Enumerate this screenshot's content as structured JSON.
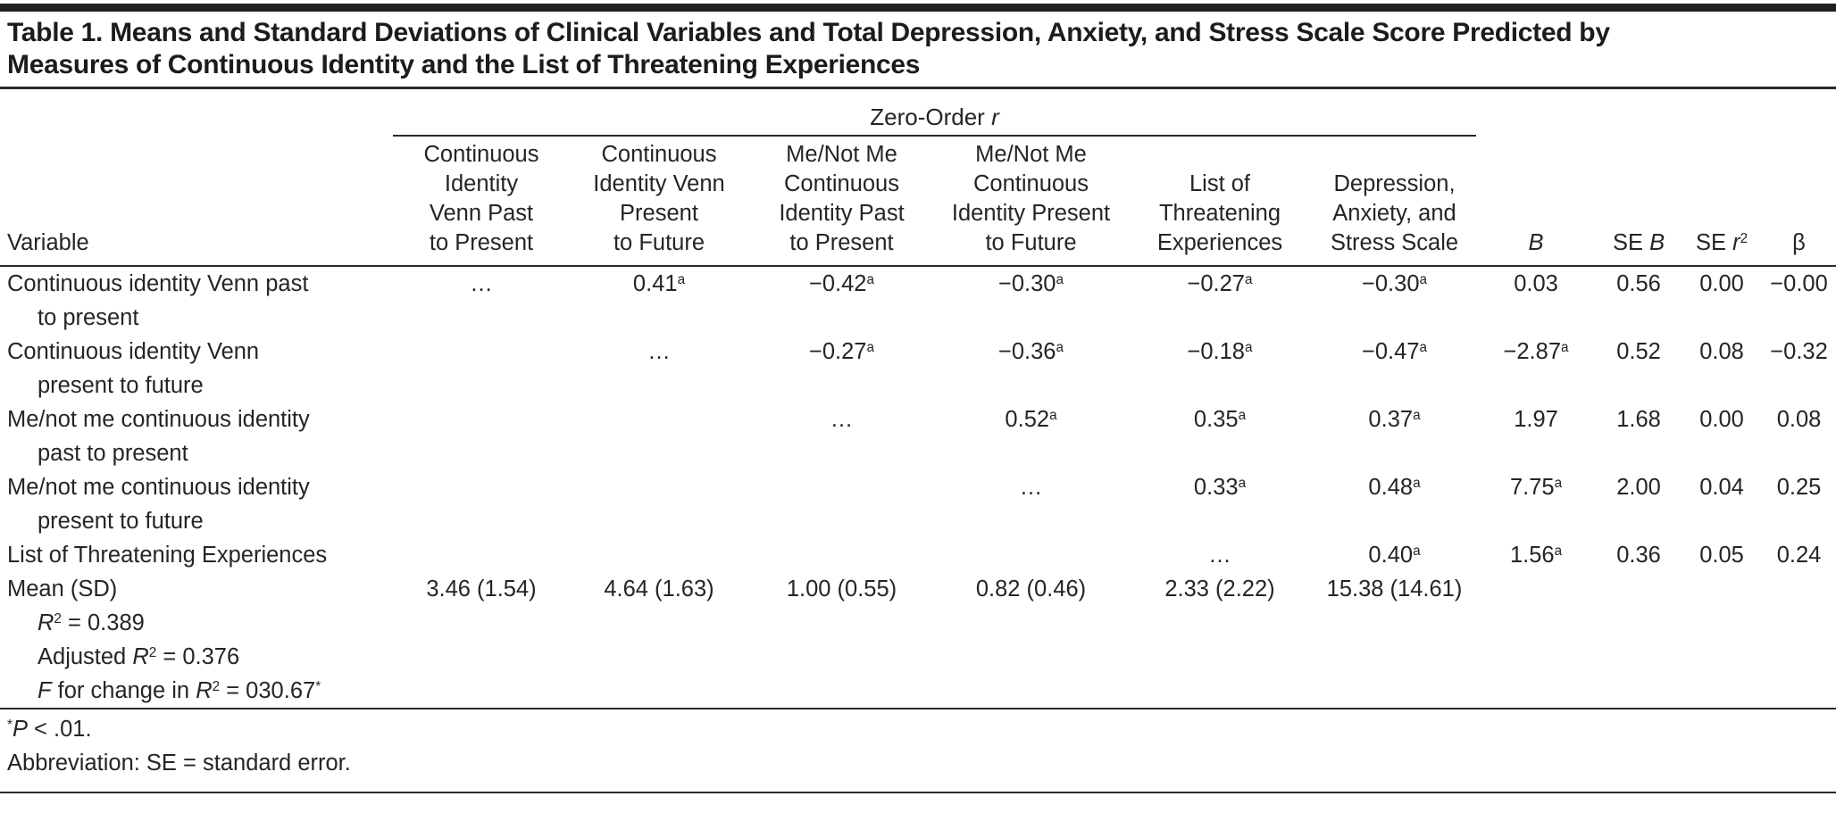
{
  "title_lines": [
    "Table 1. Means and Standard Deviations of Clinical Variables and Total Depression, Anxiety, and Stress Scale Score Predicted by",
    "Measures of Continuous Identity and the List of Threatening Experiences"
  ],
  "table": {
    "spanner_label": "Zero-Order //r//",
    "row_header_label": "Variable",
    "columns": [
      {
        "id": "continuous-identity-venn-past-to-present",
        "lines": [
          "Continuous",
          "Identity",
          "Venn Past",
          "to Present"
        ]
      },
      {
        "id": "continuous-identity-venn-present-to-future",
        "lines": [
          "Continuous",
          "Identity Venn",
          "Present",
          "to Future"
        ]
      },
      {
        "id": "me-not-me-continuous-identity-past-to-present",
        "lines": [
          "Me/Not Me",
          "Continuous",
          "Identity Past",
          "to Present"
        ]
      },
      {
        "id": "me-not-me-continuous-identity-present-to-future",
        "lines": [
          "Me/Not Me",
          "Continuous",
          "Identity Present",
          "to Future"
        ]
      },
      {
        "id": "list-of-threatening-experiences",
        "lines": [
          "List of",
          "Threatening",
          "Experiences"
        ]
      },
      {
        "id": "depression-anxiety-stress-scale",
        "lines": [
          "Depression,",
          "Anxiety, and",
          "Stress Scale"
        ]
      },
      {
        "id": "b",
        "lines": [
          "//B//"
        ]
      },
      {
        "id": "se-b",
        "lines": [
          "SE //B//"
        ]
      },
      {
        "id": "se-r2",
        "lines": [
          "SE //r//^2"
        ]
      },
      {
        "id": "beta",
        "lines": [
          "β"
        ]
      }
    ],
    "rows": [
      {
        "variable": [
          "Continuous identity Venn past",
          "to present"
        ],
        "values": [
          "…",
          "0.41^a",
          "−0.42^a",
          "−0.30^a",
          "−0.27^a",
          "−0.30^a",
          "0.03",
          "0.56",
          "0.00",
          "−0.00"
        ]
      },
      {
        "variable": [
          "Continuous identity Venn",
          "present to future"
        ],
        "values": [
          "",
          "…",
          "−0.27^a",
          "−0.36^a",
          "−0.18^a",
          "−0.47^a",
          "−2.87^a",
          "0.52",
          "0.08",
          "−0.32"
        ]
      },
      {
        "variable": [
          "Me/not me continuous identity",
          "past to present"
        ],
        "values": [
          "",
          "",
          "…",
          "0.52^a",
          "0.35^a",
          "0.37^a",
          "1.97",
          "1.68",
          "0.00",
          "0.08"
        ]
      },
      {
        "variable": [
          "Me/not me continuous identity",
          "present to future"
        ],
        "values": [
          "",
          "",
          "",
          "…",
          "0.33^a",
          "0.48^a",
          "7.75^a",
          "2.00",
          "0.04",
          "0.25"
        ]
      },
      {
        "variable": [
          "List of Threatening Experiences"
        ],
        "values": [
          "",
          "",
          "",
          "",
          "…",
          "0.40^a",
          "1.56^a",
          "0.36",
          "0.05",
          "0.24"
        ]
      },
      {
        "variable": [
          "Mean (SD)"
        ],
        "values": [
          "3.46 (1.54)",
          "4.64 (1.63)",
          "1.00 (0.55)",
          "0.82 (0.46)",
          "2.33 (2.22)",
          "15.38 (14.61)",
          "",
          "",
          "",
          ""
        ]
      }
    ],
    "stats": [
      "//R//^2 = 0.389",
      "Adjusted //R//^2 = 0.376",
      "//F// for change in //R//^2 = 030.67^*"
    ]
  },
  "footnotes": [
    "^*//P// < .01.",
    "Abbreviation: SE = standard error."
  ]
}
